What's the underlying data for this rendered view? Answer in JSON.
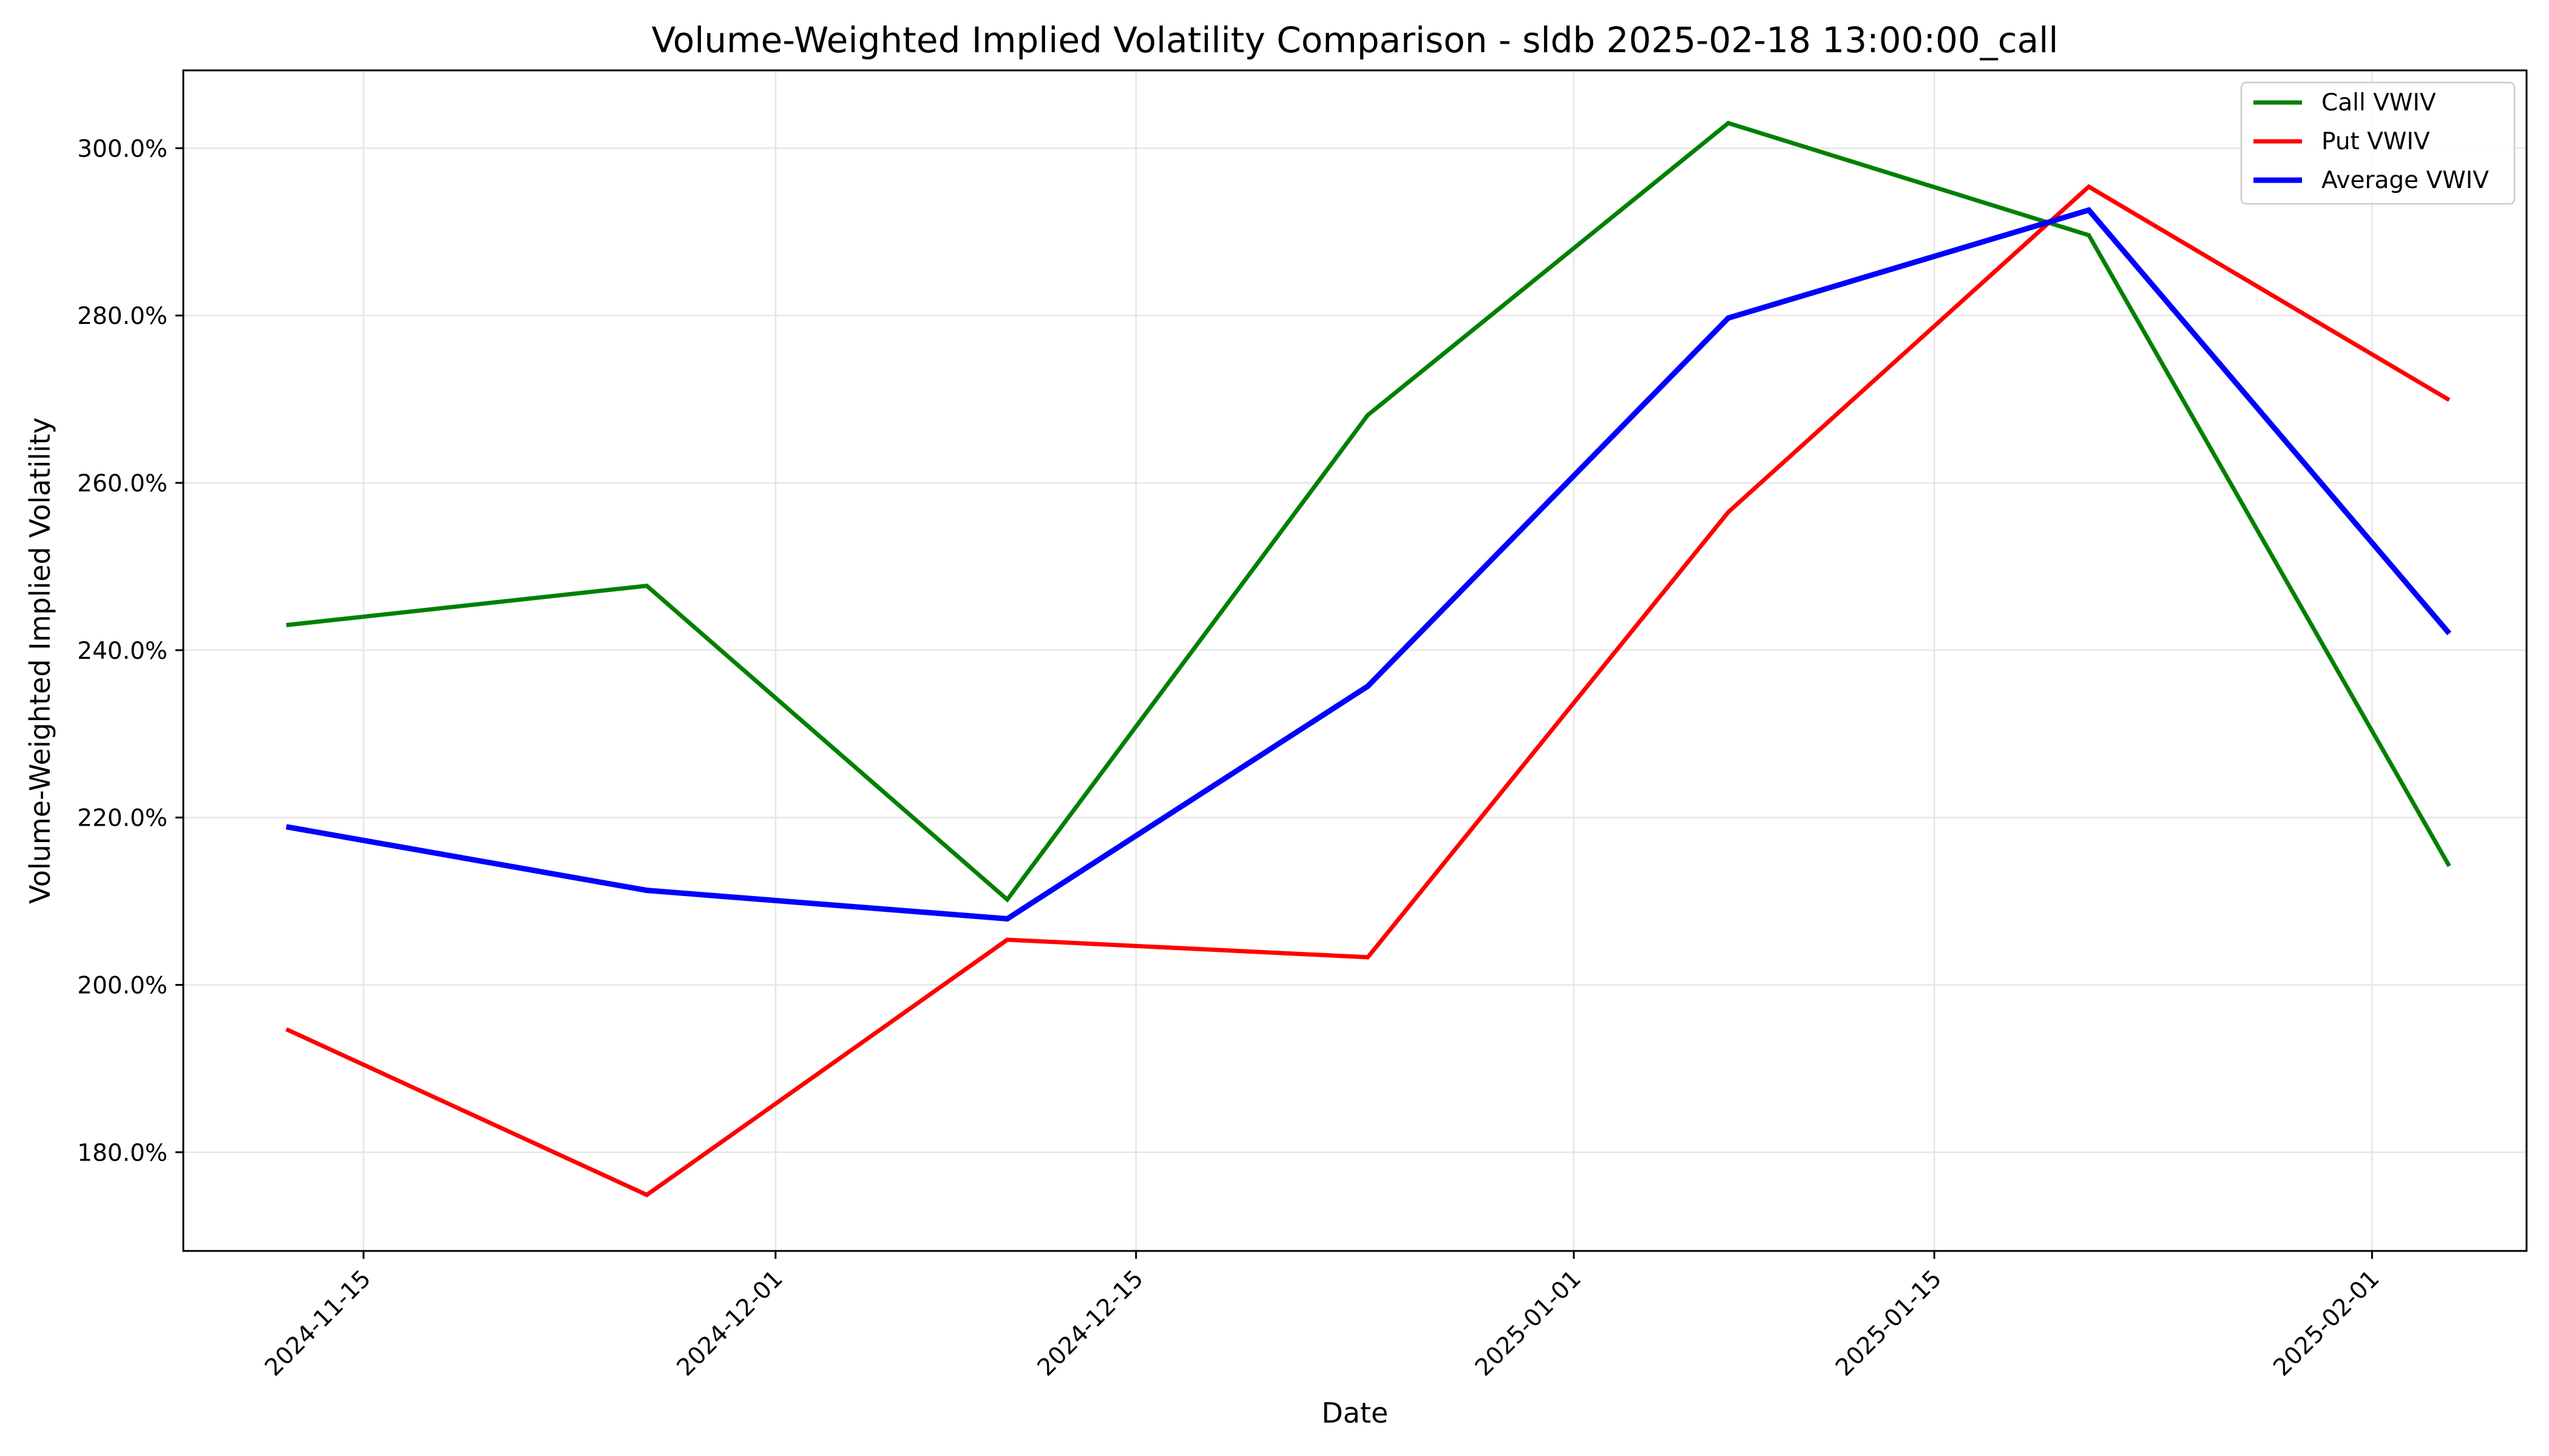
{
  "chart_data": {
    "type": "line",
    "title": "Volume-Weighted Implied Volatility Comparison - sldb 2025-02-18 13:00:00_call",
    "xlabel": "Date",
    "ylabel": "Volume-Weighted Implied Volatility",
    "x": [
      "2024-11-12",
      "2024-11-26",
      "2024-12-10",
      "2024-12-24",
      "2025-01-07",
      "2025-01-21",
      "2025-02-04"
    ],
    "xlim": [
      "2024-11-08",
      "2025-02-07"
    ],
    "ylim": [
      168.2,
      309.3
    ],
    "x_ticks": [
      "2024-11-15",
      "2024-12-01",
      "2024-12-15",
      "2025-01-01",
      "2025-01-15",
      "2025-02-01"
    ],
    "y_ticks": [
      180,
      200,
      220,
      240,
      260,
      280,
      300
    ],
    "y_tick_labels": [
      "180.0%",
      "200.0%",
      "220.0%",
      "240.0%",
      "260.0%",
      "280.0%",
      "300.0%"
    ],
    "grid": true,
    "legend_position": "top-right",
    "series": [
      {
        "name": "Call VWIV",
        "color": "#008000",
        "values": [
          243.0,
          247.7,
          210.2,
          268.1,
          303.0,
          289.6,
          214.2
        ]
      },
      {
        "name": "Put VWIV",
        "color": "#ff0000",
        "values": [
          194.7,
          174.9,
          205.4,
          203.3,
          256.5,
          295.4,
          269.9
        ]
      },
      {
        "name": "Average VWIV",
        "color": "#0000ff",
        "values": [
          218.9,
          211.3,
          207.9,
          235.7,
          279.7,
          292.6,
          242.0
        ]
      }
    ]
  }
}
